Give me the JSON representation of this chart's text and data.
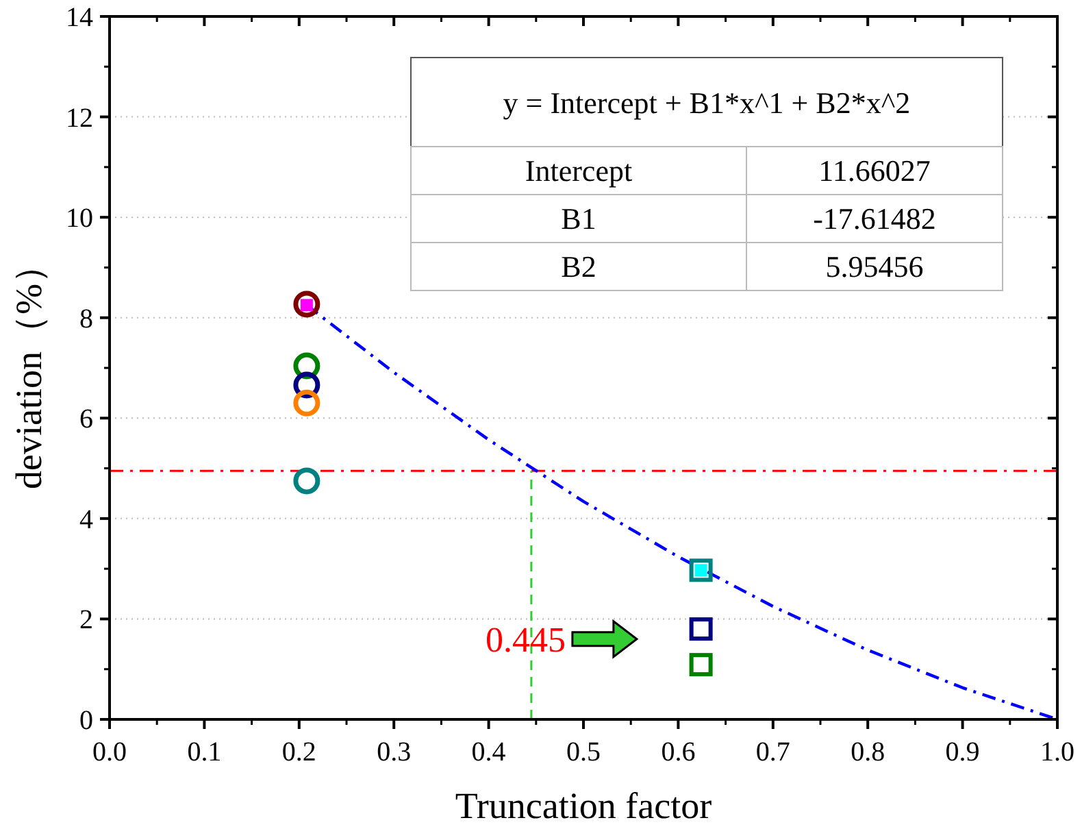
{
  "chart_data": {
    "type": "scatter",
    "xlabel": "Truncation factor",
    "ylabel": "deviation（%）",
    "xlim": [
      0,
      1
    ],
    "xticks": [
      {
        "value": 0,
        "label": "0.0"
      },
      0.1,
      0.2,
      0.3,
      0.4,
      0.5,
      0.6,
      0.7,
      0.8,
      0.9,
      {
        "value": 1,
        "label": "1.0"
      }
    ],
    "ylim": [
      0,
      14
    ],
    "yticks": [
      0,
      2,
      4,
      6,
      8,
      10,
      12,
      14
    ],
    "grid": "y",
    "marker": "circle",
    "series": [
      {
        "type": "line",
        "color": "#0000ff",
        "line_style": "dashdot",
        "marker": "none",
        "x": [
          0.208,
          0.3,
          0.4,
          0.5,
          0.6,
          0.7,
          0.8,
          0.9,
          1.0
        ],
        "values": [
          8.25,
          6.91,
          5.57,
          4.34,
          3.24,
          2.25,
          1.38,
          0.63,
          0.0
        ]
      },
      {
        "color": "#800000",
        "x": [
          0.208
        ],
        "values": [
          8.27
        ]
      },
      {
        "color": "#008000",
        "x": [
          0.208
        ],
        "values": [
          7.04
        ]
      },
      {
        "color": "#000080",
        "x": [
          0.208
        ],
        "values": [
          6.66
        ]
      },
      {
        "color": "#ff8000",
        "x": [
          0.208
        ],
        "values": [
          6.3
        ]
      },
      {
        "color": "#008080",
        "x": [
          0.208
        ],
        "values": [
          4.75
        ]
      },
      {
        "color": "#008080",
        "marker": "square",
        "x": [
          0.624
        ],
        "values": [
          2.97
        ]
      },
      {
        "color": "#000080",
        "marker": "square",
        "x": [
          0.624
        ],
        "values": [
          1.8
        ]
      },
      {
        "color": "#008000",
        "marker": "square",
        "x": [
          0.624
        ],
        "values": [
          1.09
        ]
      },
      {
        "marker": "square",
        "colors": [
          "#ff00ff",
          "#00ffff"
        ],
        "x": [
          0.208,
          0.624
        ],
        "values": [
          8.25,
          2.97
        ]
      }
    ],
    "ref_lines": [
      {
        "axis": "y",
        "value": 4.95,
        "color": "#ff0000",
        "line_style": "dashdot"
      },
      {
        "axis": "x",
        "value": 0.445,
        "label": "0.445",
        "color": "#33cc33",
        "line_style": "dashed"
      }
    ],
    "annotations": [
      "y = Intercept + B1*x^1 + B2*x^2",
      "Intercept",
      "11.66027",
      "B1",
      "-17.61482",
      "B2",
      "5.95456"
    ]
  }
}
